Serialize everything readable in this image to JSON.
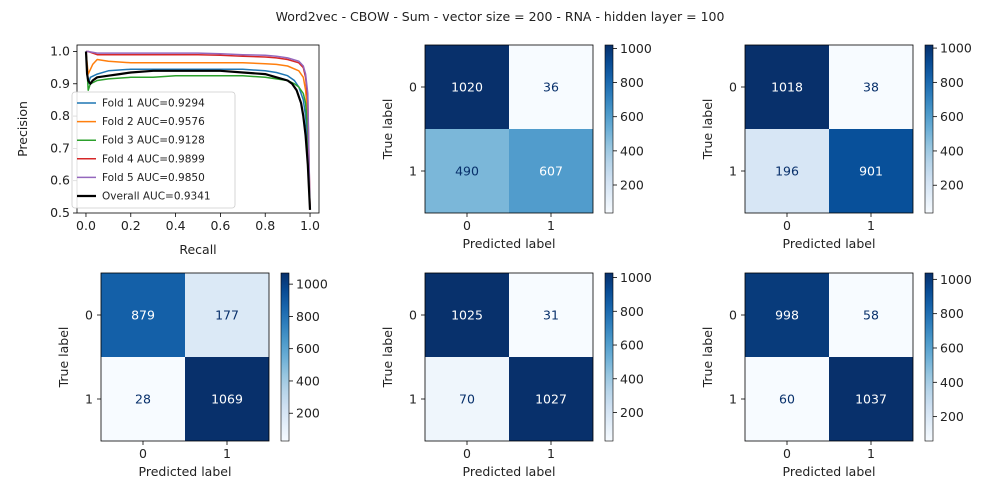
{
  "title": "Word2vec - CBOW - Sum - vector size = 200 - RNA - hidden layer = 100",
  "chart_data": [
    {
      "type": "line",
      "xlabel": "Recall",
      "ylabel": "Precision",
      "xlim": [
        -0.04,
        1.04
      ],
      "ylim": [
        0.5,
        1.02
      ],
      "x_ticks": [
        0.0,
        0.2,
        0.4,
        0.6,
        0.8,
        1.0
      ],
      "x_tick_labels": [
        "0.0",
        "0.2",
        "0.4",
        "0.6",
        "0.8",
        "1.0"
      ],
      "y_ticks": [
        0.5,
        0.6,
        0.7,
        0.8,
        0.9,
        1.0
      ],
      "y_tick_labels": [
        "0.5",
        "0.6",
        "0.7",
        "0.8",
        "0.9",
        "1.0"
      ],
      "legend_position": "lower-left",
      "series": [
        {
          "name": "Fold 1 AUC=0.9294",
          "color": "#1f77b4",
          "x": [
            0.0,
            0.01,
            0.02,
            0.05,
            0.1,
            0.2,
            0.3,
            0.4,
            0.5,
            0.6,
            0.7,
            0.8,
            0.85,
            0.9,
            0.93,
            0.95,
            0.97,
            0.98,
            0.99,
            1.0
          ],
          "y": [
            1.0,
            0.9,
            0.92,
            0.93,
            0.94,
            0.945,
            0.945,
            0.945,
            0.945,
            0.945,
            0.945,
            0.94,
            0.935,
            0.925,
            0.91,
            0.89,
            0.85,
            0.8,
            0.7,
            0.51
          ]
        },
        {
          "name": "Fold 2 AUC=0.9576",
          "color": "#ff7f0e",
          "x": [
            0.0,
            0.01,
            0.03,
            0.05,
            0.1,
            0.2,
            0.3,
            0.4,
            0.5,
            0.6,
            0.7,
            0.8,
            0.85,
            0.9,
            0.95,
            0.97,
            0.98,
            0.99,
            1.0
          ],
          "y": [
            1.0,
            0.93,
            0.96,
            0.975,
            0.97,
            0.965,
            0.965,
            0.965,
            0.965,
            0.965,
            0.965,
            0.962,
            0.96,
            0.955,
            0.94,
            0.92,
            0.88,
            0.8,
            0.51
          ]
        },
        {
          "name": "Fold 3 AUC=0.9128",
          "color": "#2ca02c",
          "x": [
            0.0,
            0.01,
            0.02,
            0.05,
            0.1,
            0.2,
            0.3,
            0.4,
            0.5,
            0.6,
            0.7,
            0.8,
            0.85,
            0.9,
            0.93,
            0.95,
            0.97,
            0.98,
            0.99,
            1.0
          ],
          "y": [
            1.0,
            0.88,
            0.9,
            0.91,
            0.915,
            0.92,
            0.92,
            0.925,
            0.925,
            0.925,
            0.925,
            0.92,
            0.915,
            0.91,
            0.9,
            0.89,
            0.87,
            0.84,
            0.75,
            0.51
          ]
        },
        {
          "name": "Fold 4 AUC=0.9899",
          "color": "#d62728",
          "x": [
            0.0,
            0.01,
            0.05,
            0.1,
            0.2,
            0.3,
            0.4,
            0.5,
            0.6,
            0.7,
            0.8,
            0.85,
            0.9,
            0.95,
            0.97,
            0.98,
            0.99,
            1.0
          ],
          "y": [
            1.0,
            1.0,
            0.99,
            0.99,
            0.99,
            0.99,
            0.99,
            0.99,
            0.988,
            0.985,
            0.983,
            0.98,
            0.975,
            0.965,
            0.95,
            0.92,
            0.85,
            0.51
          ]
        },
        {
          "name": "Fold 5 AUC=0.9850",
          "color": "#9467bd",
          "x": [
            0.0,
            0.01,
            0.05,
            0.1,
            0.2,
            0.3,
            0.4,
            0.5,
            0.6,
            0.7,
            0.8,
            0.85,
            0.9,
            0.95,
            0.97,
            0.98,
            0.99,
            1.0
          ],
          "y": [
            1.0,
            1.0,
            0.995,
            0.995,
            0.995,
            0.995,
            0.995,
            0.995,
            0.993,
            0.99,
            0.988,
            0.985,
            0.98,
            0.97,
            0.955,
            0.93,
            0.87,
            0.51
          ]
        },
        {
          "name": "Overall AUC=0.9341",
          "color": "#000000",
          "x": [
            0.0,
            0.005,
            0.01,
            0.02,
            0.03,
            0.05,
            0.1,
            0.15,
            0.2,
            0.3,
            0.4,
            0.5,
            0.6,
            0.7,
            0.8,
            0.85,
            0.9,
            0.92,
            0.94,
            0.96,
            0.97,
            0.98,
            0.99,
            0.995,
            1.0
          ],
          "y": [
            1.0,
            0.93,
            0.91,
            0.9,
            0.91,
            0.92,
            0.925,
            0.93,
            0.935,
            0.94,
            0.94,
            0.94,
            0.94,
            0.935,
            0.93,
            0.92,
            0.91,
            0.9,
            0.88,
            0.84,
            0.8,
            0.74,
            0.65,
            0.58,
            0.51
          ]
        }
      ]
    },
    {
      "type": "heatmap",
      "xlabel": "Predicted label",
      "ylabel": "True label",
      "x_tick_labels": [
        "0",
        "1"
      ],
      "y_tick_labels": [
        "0",
        "1"
      ],
      "matrix": [
        [
          1020,
          36
        ],
        [
          490,
          607
        ]
      ],
      "colorbar_ticks": [
        200,
        400,
        600,
        800,
        1000
      ],
      "colormap": "Blues"
    },
    {
      "type": "heatmap",
      "xlabel": "Predicted label",
      "ylabel": "True label",
      "x_tick_labels": [
        "0",
        "1"
      ],
      "y_tick_labels": [
        "0",
        "1"
      ],
      "matrix": [
        [
          1018,
          38
        ],
        [
          196,
          901
        ]
      ],
      "colorbar_ticks": [
        200,
        400,
        600,
        800,
        1000
      ],
      "colormap": "Blues"
    },
    {
      "type": "heatmap",
      "xlabel": "Predicted label",
      "ylabel": "True label",
      "x_tick_labels": [
        "0",
        "1"
      ],
      "y_tick_labels": [
        "0",
        "1"
      ],
      "matrix": [
        [
          879,
          177
        ],
        [
          28,
          1069
        ]
      ],
      "colorbar_ticks": [
        200,
        400,
        600,
        800,
        1000
      ],
      "colormap": "Blues"
    },
    {
      "type": "heatmap",
      "xlabel": "Predicted label",
      "ylabel": "True label",
      "x_tick_labels": [
        "0",
        "1"
      ],
      "y_tick_labels": [
        "0",
        "1"
      ],
      "matrix": [
        [
          1025,
          31
        ],
        [
          70,
          1027
        ]
      ],
      "colorbar_ticks": [
        200,
        400,
        600,
        800,
        1000
      ],
      "colormap": "Blues"
    },
    {
      "type": "heatmap",
      "xlabel": "Predicted label",
      "ylabel": "True label",
      "x_tick_labels": [
        "0",
        "1"
      ],
      "y_tick_labels": [
        "0",
        "1"
      ],
      "matrix": [
        [
          998,
          58
        ],
        [
          60,
          1037
        ]
      ],
      "colorbar_ticks": [
        200,
        400,
        600,
        800,
        1000
      ],
      "colormap": "Blues"
    }
  ]
}
